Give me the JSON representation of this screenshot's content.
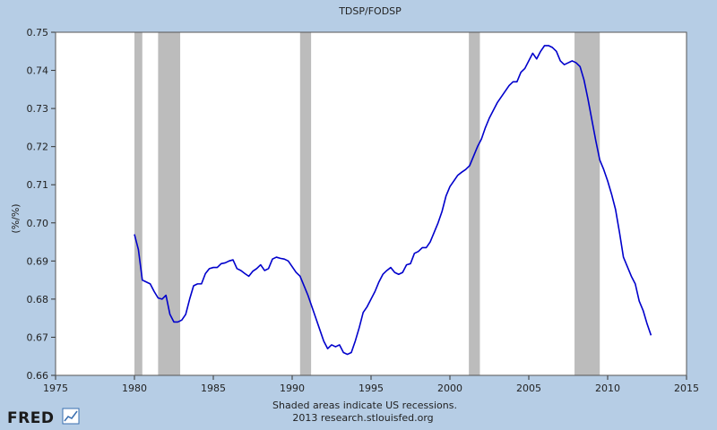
{
  "chart_data": {
    "type": "line",
    "title": "TDSP/FODSP",
    "ylabel": "(%/%)",
    "xlabel": "",
    "xlim": [
      1975,
      2015
    ],
    "ylim": [
      0.66,
      0.75
    ],
    "xticks": [
      "1975",
      "1980",
      "1985",
      "1990",
      "1995",
      "2000",
      "2005",
      "2010",
      "2015"
    ],
    "yticks": [
      "0.66",
      "0.67",
      "0.68",
      "0.69",
      "0.70",
      "0.71",
      "0.72",
      "0.73",
      "0.74",
      "0.75"
    ],
    "grid": false,
    "recessions": [
      [
        1980.0,
        1980.5
      ],
      [
        1981.5,
        1982.9
      ],
      [
        1990.5,
        1991.2
      ],
      [
        2001.2,
        2001.9
      ],
      [
        2007.9,
        2009.5
      ]
    ],
    "series": [
      {
        "name": "",
        "color": "#0000cc",
        "x": [
          1980.0,
          1980.25,
          1980.5,
          1980.75,
          1981.0,
          1981.25,
          1981.5,
          1981.75,
          1982.0,
          1982.25,
          1982.5,
          1982.75,
          1983.0,
          1983.25,
          1983.5,
          1983.75,
          1984.0,
          1984.25,
          1984.5,
          1984.75,
          1985.0,
          1985.25,
          1985.5,
          1985.75,
          1986.0,
          1986.25,
          1986.5,
          1986.75,
          1987.0,
          1987.25,
          1987.5,
          1987.75,
          1988.0,
          1988.25,
          1988.5,
          1988.75,
          1989.0,
          1989.25,
          1989.5,
          1989.75,
          1990.0,
          1990.25,
          1990.5,
          1990.75,
          1991.0,
          1991.25,
          1991.5,
          1991.75,
          1992.0,
          1992.25,
          1992.5,
          1992.75,
          1993.0,
          1993.25,
          1993.5,
          1993.75,
          1994.0,
          1994.25,
          1994.5,
          1994.75,
          1995.0,
          1995.25,
          1995.5,
          1995.75,
          1996.0,
          1996.25,
          1996.5,
          1996.75,
          1997.0,
          1997.25,
          1997.5,
          1997.75,
          1998.0,
          1998.25,
          1998.5,
          1998.75,
          1999.0,
          1999.25,
          1999.5,
          1999.75,
          2000.0,
          2000.25,
          2000.5,
          2000.75,
          2001.0,
          2001.25,
          2001.5,
          2001.75,
          2002.0,
          2002.25,
          2002.5,
          2002.75,
          2003.0,
          2003.25,
          2003.5,
          2003.75,
          2004.0,
          2004.25,
          2004.5,
          2004.75,
          2005.0,
          2005.25,
          2005.5,
          2005.75,
          2006.0,
          2006.25,
          2006.5,
          2006.75,
          2007.0,
          2007.25,
          2007.5,
          2007.75,
          2008.0,
          2008.25,
          2008.5,
          2008.75,
          2009.0,
          2009.25,
          2009.5,
          2009.75,
          2010.0,
          2010.25,
          2010.5,
          2010.75,
          2011.0,
          2011.25,
          2011.5,
          2011.75,
          2012.0,
          2012.25,
          2012.5,
          2012.75
        ],
        "values": [
          0.697,
          0.693,
          0.685,
          0.6845,
          0.684,
          0.682,
          0.6803,
          0.68,
          0.681,
          0.676,
          0.674,
          0.674,
          0.6745,
          0.676,
          0.68,
          0.6835,
          0.684,
          0.684,
          0.6867,
          0.688,
          0.6883,
          0.6883,
          0.6893,
          0.6895,
          0.69,
          0.6903,
          0.688,
          0.6875,
          0.6867,
          0.686,
          0.6873,
          0.688,
          0.689,
          0.6875,
          0.688,
          0.6905,
          0.691,
          0.6907,
          0.6905,
          0.69,
          0.6885,
          0.687,
          0.686,
          0.6835,
          0.681,
          0.678,
          0.675,
          0.672,
          0.669,
          0.667,
          0.668,
          0.6675,
          0.668,
          0.666,
          0.6655,
          0.666,
          0.669,
          0.6725,
          0.6765,
          0.678,
          0.68,
          0.682,
          0.6845,
          0.6865,
          0.6875,
          0.6883,
          0.687,
          0.6865,
          0.687,
          0.689,
          0.6893,
          0.692,
          0.6925,
          0.6935,
          0.6935,
          0.695,
          0.6975,
          0.7,
          0.703,
          0.707,
          0.7095,
          0.711,
          0.7125,
          0.7133,
          0.714,
          0.715,
          0.7175,
          0.72,
          0.722,
          0.725,
          0.7275,
          0.7295,
          0.7315,
          0.733,
          0.7345,
          0.736,
          0.737,
          0.737,
          0.7395,
          0.7405,
          0.7425,
          0.7445,
          0.743,
          0.745,
          0.7465,
          0.7465,
          0.746,
          0.745,
          0.7425,
          0.7415,
          0.742,
          0.7425,
          0.742,
          0.741,
          0.7375,
          0.7325,
          0.727,
          0.7215,
          0.7165,
          0.714,
          0.711,
          0.7075,
          0.7035,
          0.6975,
          0.691,
          0.6885,
          0.686,
          0.684,
          0.6795,
          0.677,
          0.6735,
          0.6705
        ]
      }
    ],
    "footer": {
      "line1": "Shaded areas indicate US recessions.",
      "line2": "2013 research.stlouisfed.org"
    },
    "logo": "FRED",
    "colors": {
      "background": "#b6cde5",
      "plot_area": "#ffffff",
      "recession": "#bcbcbc",
      "line": "#0000cc"
    }
  }
}
